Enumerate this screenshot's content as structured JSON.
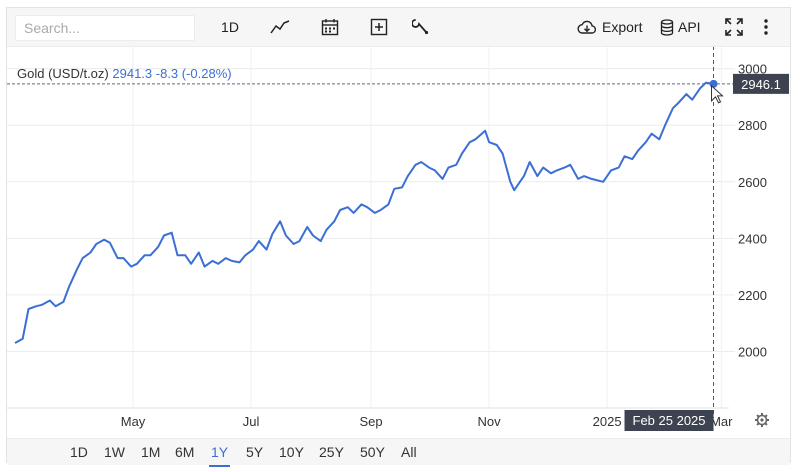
{
  "toolbar": {
    "search_placeholder": "Search...",
    "interval_label": "1D",
    "export_label": "Export",
    "api_label": "API",
    "icons": [
      "line-chart-icon",
      "calendar-icon",
      "add-icon",
      "wrench-icon",
      "cloud-download-icon",
      "database-icon",
      "fullscreen-icon",
      "more-icon"
    ]
  },
  "header": {
    "instrument": "Gold (USD/t.oz)",
    "price": "2941.3",
    "change": "-8.3 (-0.28%)"
  },
  "crosshair": {
    "price_label": "2946.1",
    "date_label": "Feb 25 2025"
  },
  "ranges": [
    "1D",
    "1W",
    "1M",
    "6M",
    "1Y",
    "5Y",
    "10Y",
    "25Y",
    "50Y",
    "All"
  ],
  "active_range": "1Y",
  "colors": {
    "line": "#3b6fd6",
    "accent": "#3b6fd6",
    "label_bg": "#3d4350"
  },
  "chart_data": {
    "type": "line",
    "title": "Gold (USD/t.oz)",
    "series": [
      {
        "name": "Gold (USD/t.oz)",
        "x": [
          "2024-03-01",
          "2024-03-05",
          "2024-03-08",
          "2024-03-12",
          "2024-03-15",
          "2024-03-19",
          "2024-03-22",
          "2024-03-26",
          "2024-03-29",
          "2024-04-02",
          "2024-04-05",
          "2024-04-09",
          "2024-04-12",
          "2024-04-16",
          "2024-04-19",
          "2024-04-23",
          "2024-04-26",
          "2024-04-30",
          "2024-05-03",
          "2024-05-07",
          "2024-05-10",
          "2024-05-14",
          "2024-05-17",
          "2024-05-21",
          "2024-05-24",
          "2024-05-28",
          "2024-05-31",
          "2024-06-04",
          "2024-06-07",
          "2024-06-11",
          "2024-06-14",
          "2024-06-18",
          "2024-06-21",
          "2024-06-25",
          "2024-06-28",
          "2024-07-02",
          "2024-07-05",
          "2024-07-09",
          "2024-07-12",
          "2024-07-16",
          "2024-07-19",
          "2024-07-23",
          "2024-07-26",
          "2024-07-30",
          "2024-08-02",
          "2024-08-06",
          "2024-08-09",
          "2024-08-13",
          "2024-08-16",
          "2024-08-20",
          "2024-08-23",
          "2024-08-27",
          "2024-08-30",
          "2024-09-03",
          "2024-09-06",
          "2024-09-10",
          "2024-09-13",
          "2024-09-17",
          "2024-09-20",
          "2024-09-24",
          "2024-09-27",
          "2024-10-01",
          "2024-10-04",
          "2024-10-08",
          "2024-10-11",
          "2024-10-15",
          "2024-10-18",
          "2024-10-22",
          "2024-10-25",
          "2024-10-30",
          "2024-11-01",
          "2024-11-05",
          "2024-11-08",
          "2024-11-12",
          "2024-11-14",
          "2024-11-19",
          "2024-11-22",
          "2024-11-26",
          "2024-11-29",
          "2024-12-03",
          "2024-12-06",
          "2024-12-10",
          "2024-12-13",
          "2024-12-17",
          "2024-12-20",
          "2024-12-24",
          "2024-12-30",
          "2025-01-03",
          "2025-01-07",
          "2025-01-10",
          "2025-01-14",
          "2025-01-17",
          "2025-01-21",
          "2025-01-24",
          "2025-01-28",
          "2025-01-31",
          "2025-02-04",
          "2025-02-07",
          "2025-02-11",
          "2025-02-14",
          "2025-02-18",
          "2025-02-21",
          "2025-02-25"
        ],
        "y": [
          2030,
          2045,
          2150,
          2160,
          2165,
          2180,
          2160,
          2175,
          2230,
          2290,
          2330,
          2350,
          2380,
          2395,
          2385,
          2330,
          2330,
          2300,
          2310,
          2340,
          2340,
          2370,
          2410,
          2420,
          2340,
          2340,
          2310,
          2350,
          2300,
          2320,
          2310,
          2330,
          2320,
          2315,
          2340,
          2360,
          2390,
          2360,
          2415,
          2460,
          2410,
          2380,
          2390,
          2440,
          2410,
          2390,
          2430,
          2460,
          2500,
          2510,
          2490,
          2520,
          2510,
          2490,
          2500,
          2520,
          2575,
          2580,
          2620,
          2660,
          2670,
          2650,
          2640,
          2610,
          2650,
          2660,
          2700,
          2740,
          2750,
          2780,
          2740,
          2730,
          2700,
          2600,
          2570,
          2620,
          2670,
          2620,
          2650,
          2630,
          2640,
          2650,
          2660,
          2610,
          2620,
          2610,
          2600,
          2640,
          2650,
          2690,
          2680,
          2710,
          2740,
          2770,
          2750,
          2800,
          2860,
          2880,
          2910,
          2890,
          2930,
          2950,
          2946.1
        ]
      }
    ],
    "x_ticks": [
      "May",
      "Jul",
      "Sep",
      "Nov",
      "2025",
      "Mar"
    ],
    "y_ticks": [
      2000,
      2200,
      2400,
      2600,
      2800,
      3000
    ],
    "ylim": [
      1800,
      3080
    ],
    "xlim": [
      "2024-03-01",
      "2025-03-05"
    ],
    "grid": true,
    "crosshair_date": "2025-02-25",
    "crosshair_value": 2946.1
  }
}
